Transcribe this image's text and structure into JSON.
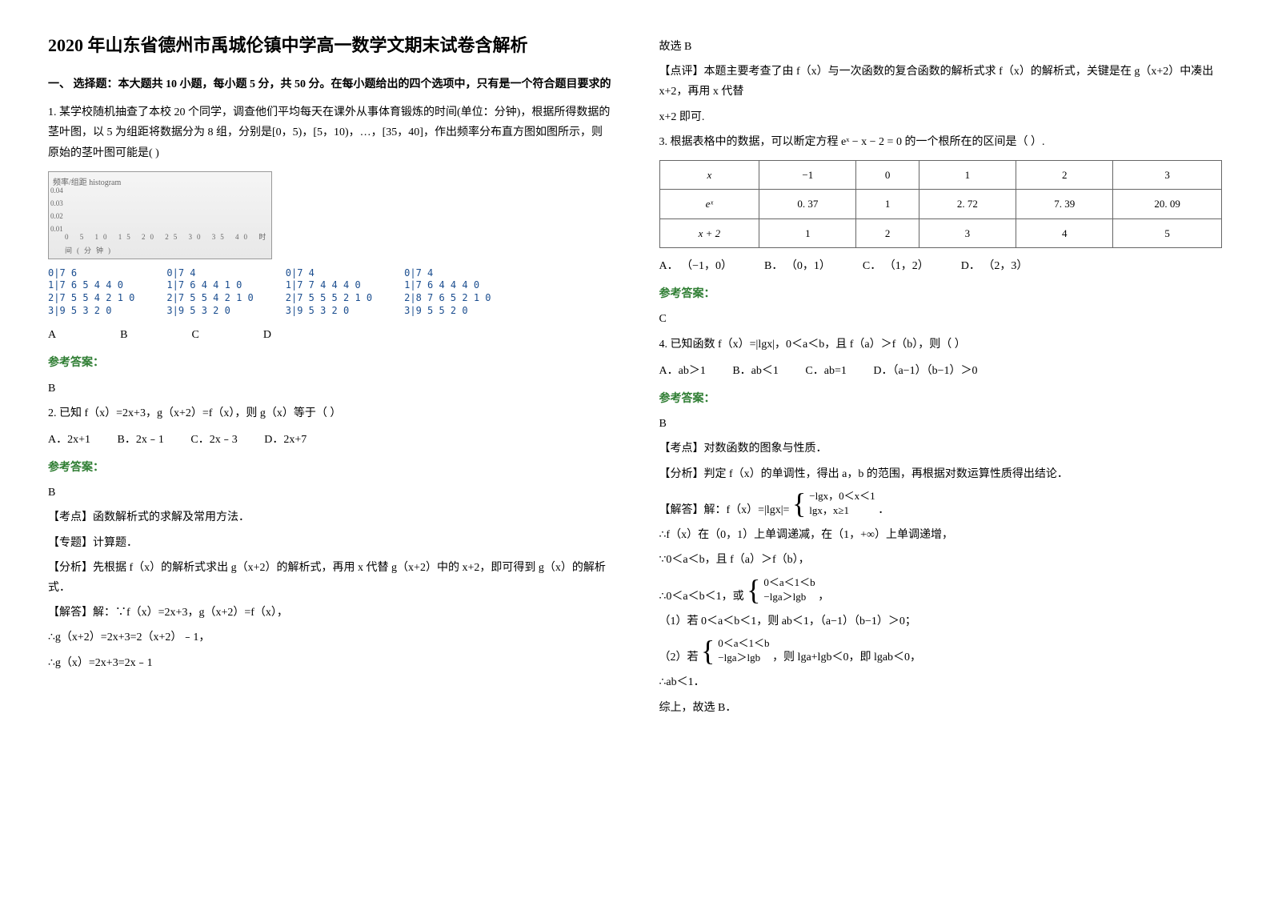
{
  "title": "2020 年山东省德州市禹城伦镇中学高一数学文期末试卷含解析",
  "section1_title": "一、 选择题：本大题共 10 小题，每小题 5 分，共 50 分。在每小题给出的四个选项中，只有是一个符合题目要求的",
  "q1": {
    "stem": "1. 某学校随机抽查了本校 20 个同学，调查他们平均每天在课外从事体育锻炼的时间(单位：分钟)，根据所得数据的茎叶图，以 5 为组距将数据分为 8 组，分别是[0，5)，[5，10)，…，[35，40]，作出频率分布直方图如图所示，则原始的茎叶图可能是(   )",
    "yaxis": [
      "0.04",
      "0.03",
      "0.02",
      "0.01"
    ],
    "xaxis": "0  5 10 15 20 25 30 35 40 时间(分钟)",
    "opts": {
      "A": "A",
      "B": "B",
      "C": "C",
      "D": "D"
    },
    "stemleaf": {
      "a": "0|7 6\n1|7 6 5 4 4 0\n2|7 5 5 4 2 1 0\n3|9 5 3 2 0",
      "b": "0|7 4\n1|7 6 4 4 1 0\n2|7 5 5 4 2 1 0\n3|9 5 3 2 0",
      "c": "0|7 4\n1|7 7 4 4 4 0\n2|7 5 5 5 2 1 0\n3|9 5 3 2 0",
      "d": "0|7 4\n1|7 6 4 4 4 0\n2|8 7 6 5 2 1 0\n3|9 5 5 2 0"
    },
    "answer_label": "参考答案：",
    "answer": "B"
  },
  "q2": {
    "stem": "2. 已知 f（x）=2x+3，g（x+2）=f（x），则 g（x）等于（    ）",
    "optA": "A．2x+1",
    "optB": "B．2x﹣1",
    "optC": "C．2x﹣3",
    "optD": "D．2x+7",
    "answer_label": "参考答案：",
    "answer": "B",
    "kp": "【考点】函数解析式的求解及常用方法．",
    "zt": "【专题】计算题．",
    "fx": "【分析】先根据 f（x）的解析式求出 g（x+2）的解析式，再用 x 代替 g（x+2）中的 x+2，即可得到 g（x）的解析式．",
    "jd1": "【解答】解：∵f（x）=2x+3，g（x+2）=f（x），",
    "jd2": "∴g（x+2）=2x+3=2（x+2）﹣1，",
    "jd3": "∴g（x）=2x+3=2x﹣1",
    "xb": "故选 B",
    "dp": "【点评】本题主要考查了由 f（x）与一次函数的复合函数的解析式求 f（x）的解析式，关键是在 g（x+2）中凑出 x+2，再用 x 代替",
    "dp2": "x+2 即可."
  },
  "q3": {
    "stem": "3. 根据表格中的数据，可以断定方程 eˣ − x − 2 = 0 的一个根所在的区间是（  ）.",
    "table": {
      "h": [
        "x",
        "−1",
        "0",
        "1",
        "2",
        "3"
      ],
      "r1": [
        "eˣ",
        "0. 37",
        "1",
        "2. 72",
        "7. 39",
        "20. 09"
      ],
      "r2": [
        "x + 2",
        "1",
        "2",
        "3",
        "4",
        "5"
      ]
    },
    "optA": "A．  （−1，0）",
    "optB": "B．  （0，1）",
    "optC": "C．  （1，2）",
    "optD": "D．  （2，3）",
    "answer_label": "参考答案：",
    "answer": "C"
  },
  "q4": {
    "stem": "4. 已知函数 f（x）=|lgx|，0＜a＜b，且 f（a）＞f（b），则（    ）",
    "optA": "A．ab＞1",
    "optB": "B．ab＜1",
    "optC": "C．ab=1",
    "optD": "D．（a−1）（b−1）＞0",
    "answer_label": "参考答案：",
    "answer": "B",
    "kp": "【考点】对数函数的图象与性质．",
    "fx": "【分析】判定 f（x）的单调性，得出 a，b 的范围，再根据对数运算性质得出结论．",
    "jd_pre": "【解答】解：f（x）=|lgx|=",
    "piece1": "−lgx，0＜x＜1",
    "piece2": "lgx，x≥1",
    "l1": "∴f（x）在（0，1）上单调递减，在（1，+∞）上单调递增，",
    "l2": "∵0＜a＜b，且 f（a）＞f（b），",
    "b1": "0＜a＜1＜b",
    "b2": "−lga＞lgb",
    "l3_pre": "∴0＜a＜b＜1，或",
    "l3_suf": "，",
    "c1": "（1）若 0＜a＜b＜1，则 ab＜1，（a−1）（b−1）＞0；",
    "c2_pre": "（2）若",
    "c2a": "0＜a＜1＜b",
    "c2b": "−lga＞lgb",
    "c2_suf": "，则 lga+lgb＜0，即 lgab＜0，",
    "l4": "∴ab＜1．",
    "l5": "综上，故选 B．"
  }
}
